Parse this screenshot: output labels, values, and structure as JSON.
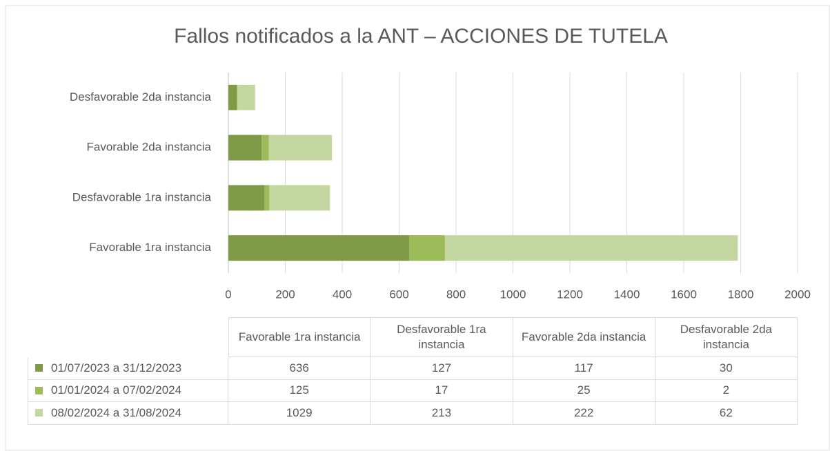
{
  "chart_data": {
    "type": "stacked_bar_horizontal",
    "title": "Fallos notificados a la ANT – ACCIONES DE TUTELA",
    "categories": [
      "Favorable 1ra instancia",
      "Desfavorable 1ra instancia",
      "Favorable 2da instancia",
      "Desfavorable 2da instancia"
    ],
    "series": [
      {
        "name": "01/07/2023 a 31/12/2023",
        "color": "#7f9b48",
        "values": [
          636,
          127,
          117,
          30
        ]
      },
      {
        "name": "01/01/2024 a 07/02/2024",
        "color": "#9bbb59",
        "values": [
          125,
          17,
          25,
          2
        ]
      },
      {
        "name": "08/02/2024 a 31/08/2024",
        "color": "#c4d7a0",
        "values": [
          1029,
          213,
          222,
          62
        ]
      }
    ],
    "xlim": [
      0,
      2000
    ],
    "xticks": [
      0,
      200,
      400,
      600,
      800,
      1000,
      1200,
      1400,
      1600,
      1800,
      2000
    ],
    "grid": true,
    "data_table": true
  }
}
